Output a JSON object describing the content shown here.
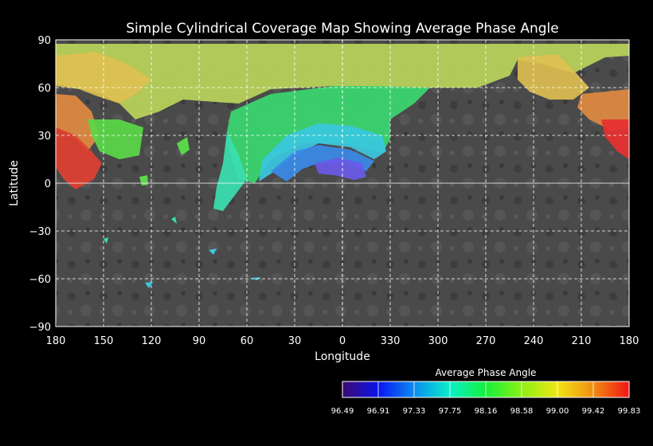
{
  "title": "Simple Cylindrical Coverage Map Showing Average Phase Angle",
  "x_axis": {
    "label": "Longitude",
    "ticks": [
      "180",
      "150",
      "120",
      "90",
      "60",
      "30",
      "0",
      "330",
      "300",
      "270",
      "240",
      "210",
      "180"
    ]
  },
  "y_axis": {
    "label": "Latitude",
    "ticks": [
      "90",
      "60",
      "30",
      "0",
      "−30",
      "−60",
      "−90"
    ],
    "range": [
      -90,
      90
    ]
  },
  "grid": true,
  "colorbar": {
    "title": "Average Phase Angle",
    "ticks": [
      "96.49",
      "96.91",
      "97.33",
      "97.75",
      "98.16",
      "98.58",
      "99.00",
      "99.42",
      "99.83"
    ],
    "colors": [
      "#3c0a6e",
      "#0a14f0",
      "#0a8cf0",
      "#0af0c8",
      "#14f03c",
      "#8cf014",
      "#f0e614",
      "#f08c14",
      "#f01414"
    ]
  },
  "basemap_colors": {
    "surface": "#4a4a4a",
    "ocean_dark": "#2e2e2e"
  },
  "coverage_colors": {
    "yellow": "#c8d85a",
    "yellow_green": "#9ed84a",
    "green": "#5ad848",
    "teal": "#3ae0a8",
    "cyan": "#3ab8e8",
    "blue": "#3a7ae8",
    "violet": "#6a5ae8",
    "orange": "#e0a040",
    "red_orange": "#e06040",
    "red": "#e83030"
  }
}
